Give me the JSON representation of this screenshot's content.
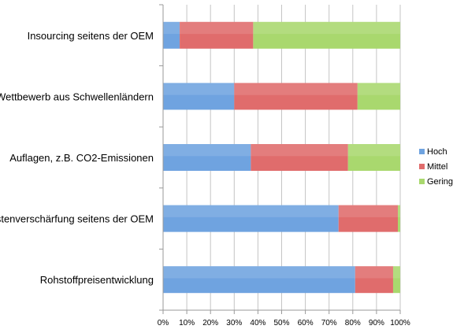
{
  "chart_data": {
    "type": "bar",
    "orientation": "horizontal",
    "stacked": true,
    "categories": [
      "Insourcing seitens der OEM",
      "Wettbewerb aus Schwellenländern",
      "Auflagen, z.B. CO2-Emissionen",
      "Kostenverschärfung seitens der OEM",
      "Rohstoffpreisentwicklung"
    ],
    "series": [
      {
        "name": "Hoch",
        "color": "#6fa3e0",
        "values": [
          7,
          30,
          37,
          74,
          81
        ]
      },
      {
        "name": "Mittel",
        "color": "#e06c6c",
        "values": [
          31,
          52,
          41,
          25,
          16
        ]
      },
      {
        "name": "Gering",
        "color": "#a9d86e",
        "values": [
          62,
          18,
          22,
          1,
          3
        ]
      }
    ],
    "xlim": [
      0,
      100
    ],
    "x_ticks": [
      "0%",
      "10%",
      "20%",
      "30%",
      "40%",
      "50%",
      "60%",
      "70%",
      "80%",
      "90%",
      "100%"
    ],
    "title": "",
    "xlabel": "",
    "ylabel": "",
    "legend_position": "right",
    "grid": true
  }
}
